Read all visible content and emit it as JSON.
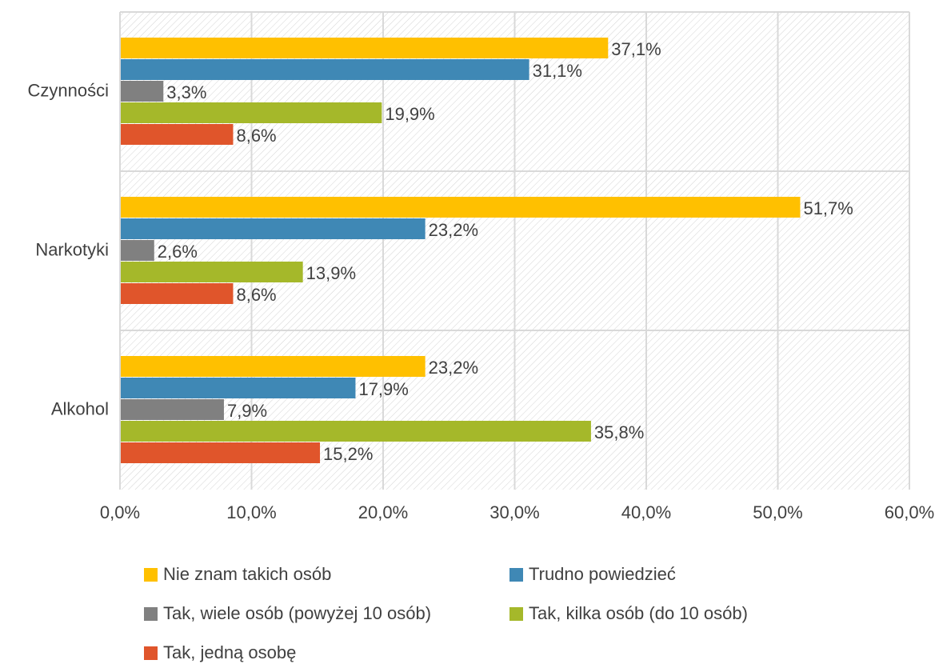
{
  "chart_data": {
    "type": "bar",
    "orientation": "horizontal",
    "categories": [
      "Czynności",
      "Narkotyki",
      "Alkohol"
    ],
    "series": [
      {
        "name": "Nie znam takich osób",
        "color": "#ffc000",
        "values": [
          37.1,
          51.7,
          23.2
        ],
        "value_labels": [
          "37,1%",
          "51,7%",
          "23,2%"
        ]
      },
      {
        "name": "Trudno powiedzieć",
        "color": "#3f88b5",
        "values": [
          31.1,
          23.2,
          17.9
        ],
        "value_labels": [
          "31,1%",
          "23,2%",
          "17,9%"
        ]
      },
      {
        "name": "Tak, wiele osób (powyżej 10 osób)",
        "color": "#808080",
        "values": [
          3.3,
          2.6,
          7.9
        ],
        "value_labels": [
          "3,3%",
          "2,6%",
          "7,9%"
        ]
      },
      {
        "name": "Tak, kilka osób (do 10 osób)",
        "color": "#a5b82a",
        "values": [
          19.9,
          13.9,
          35.8
        ],
        "value_labels": [
          "19,9%",
          "13,9%",
          "35,8%"
        ]
      },
      {
        "name": "Tak, jedną osobę",
        "color": "#e0552b",
        "values": [
          8.6,
          8.6,
          15.2
        ],
        "value_labels": [
          "8,6%",
          "8,6%",
          "15,2%"
        ]
      }
    ],
    "xlim": [
      0,
      60
    ],
    "xticks": [
      {
        "value": 0,
        "label": "0,0%"
      },
      {
        "value": 10,
        "label": "10,0%"
      },
      {
        "value": 20,
        "label": "20,0%"
      },
      {
        "value": 30,
        "label": "30,0%"
      },
      {
        "value": 40,
        "label": "40,0%"
      },
      {
        "value": 50,
        "label": "50,0%"
      },
      {
        "value": 60,
        "label": "60,0%"
      }
    ],
    "grid": true,
    "legend": "bottom"
  }
}
